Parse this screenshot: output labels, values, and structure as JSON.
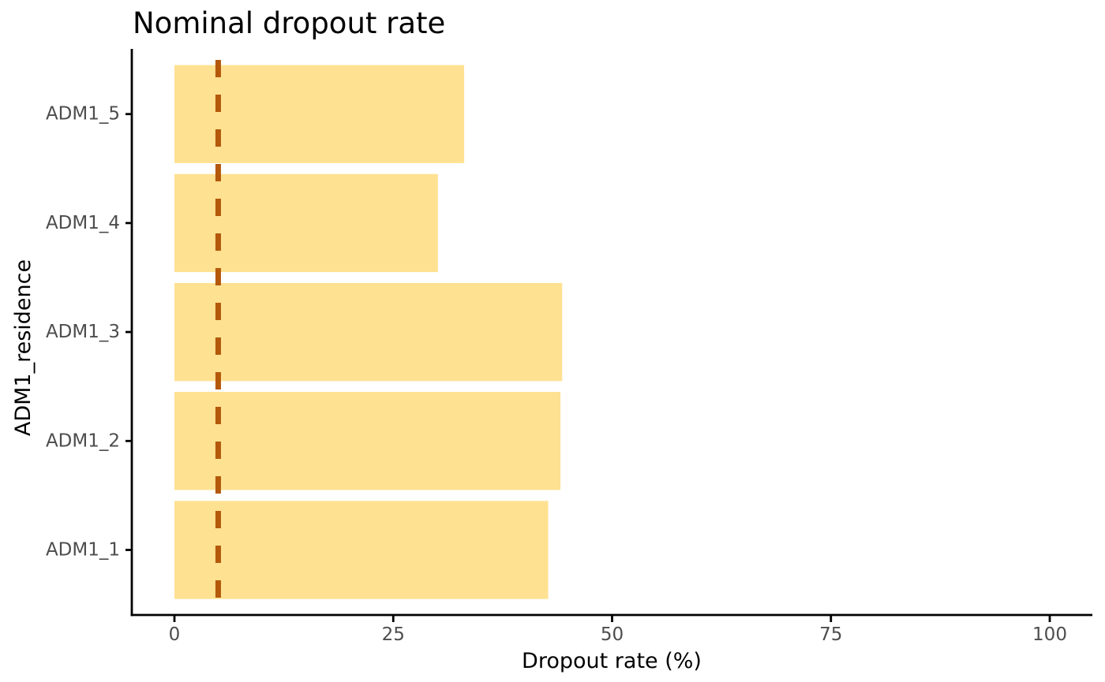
{
  "chart_data": {
    "type": "bar",
    "orientation": "horizontal",
    "title": "Nominal dropout rate",
    "xlabel": "Dropout rate (%)",
    "ylabel": "ADM1_residence",
    "categories_top_to_bottom": [
      "ADM1_5",
      "ADM1_4",
      "ADM1_3",
      "ADM1_2",
      "ADM1_1"
    ],
    "values": [
      33.1,
      30.1,
      44.3,
      44.1,
      42.7
    ],
    "x_ticks": [
      0,
      25,
      50,
      75,
      100
    ],
    "xlim": [
      0,
      100
    ],
    "reference_line": {
      "value": 5,
      "style": "dashed",
      "color": "#B4580A"
    },
    "bar_color": "#FFE192",
    "axis_color": "#000000",
    "tick_label_color": "#4d4d4d",
    "grid": false,
    "legend_position": "none",
    "background_color": "#ffffff"
  }
}
